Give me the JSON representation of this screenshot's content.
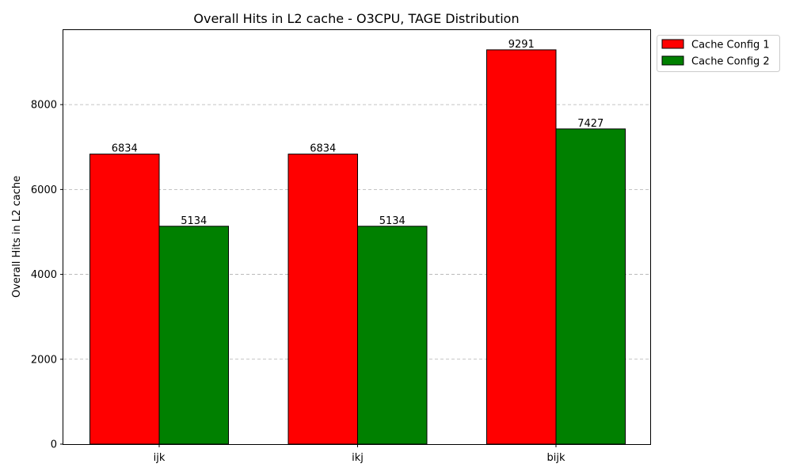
{
  "chart_data": {
    "type": "bar",
    "title": "Overall Hits in L2 cache - O3CPU, TAGE Distribution",
    "xlabel": "",
    "ylabel": "Overall Hits in L2 cache",
    "categories": [
      "ijk",
      "ikj",
      "bijk"
    ],
    "series": [
      {
        "name": "Cache Config 1",
        "color": "#ff0000",
        "values": [
          6834,
          6834,
          9291
        ]
      },
      {
        "name": "Cache Config 2",
        "color": "#008000",
        "values": [
          5134,
          5134,
          7427
        ]
      }
    ],
    "ylim": [
      0,
      9756
    ],
    "yticks": [
      0,
      2000,
      4000,
      6000,
      8000
    ],
    "ytick_labels": [
      "0",
      "2000",
      "4000",
      "6000",
      "8000"
    ],
    "grid": "y-dashed",
    "legend_position": "outside-top-right"
  }
}
